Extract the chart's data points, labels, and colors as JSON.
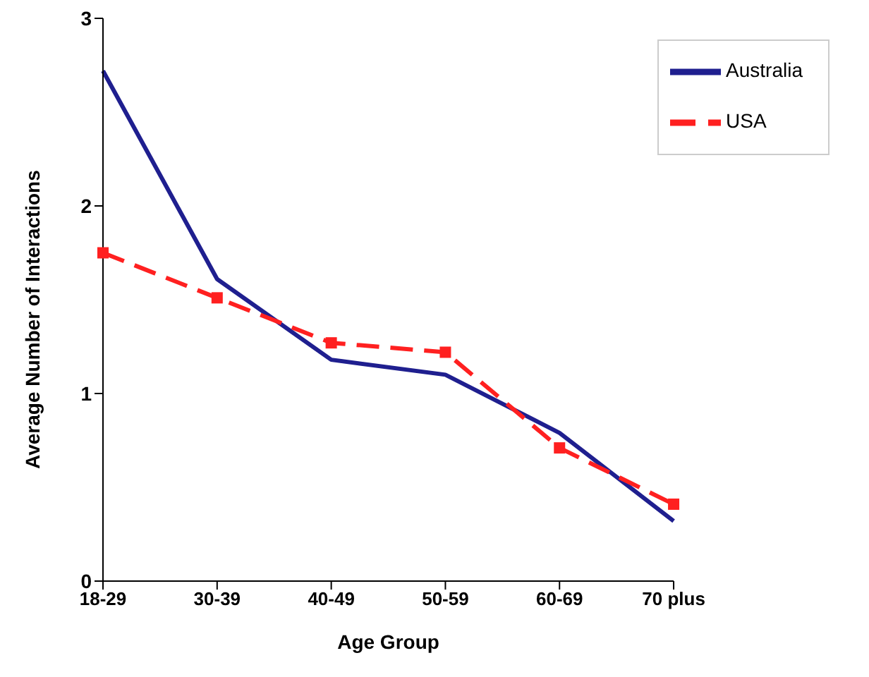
{
  "chart_data": {
    "type": "line",
    "xlabel": "Age Group",
    "ylabel": "Average Number of Interactions",
    "categories": [
      "18-29",
      "30-39",
      "40-49",
      "50-59",
      "60-69",
      "70 plus"
    ],
    "series": [
      {
        "name": "Australia",
        "color": "#1f1f8f",
        "values": [
          2.72,
          1.61,
          1.18,
          1.1,
          0.79,
          0.32
        ],
        "marker": "none",
        "line_style": "solid"
      },
      {
        "name": "USA",
        "color": "#ff2020",
        "values": [
          1.75,
          1.51,
          1.27,
          1.22,
          0.71,
          0.41
        ],
        "marker": "square",
        "line_style": "dashed"
      }
    ],
    "ylim": [
      0,
      3
    ],
    "yticks": [
      0,
      1,
      2,
      3
    ],
    "grid": false,
    "legend": "top right"
  }
}
